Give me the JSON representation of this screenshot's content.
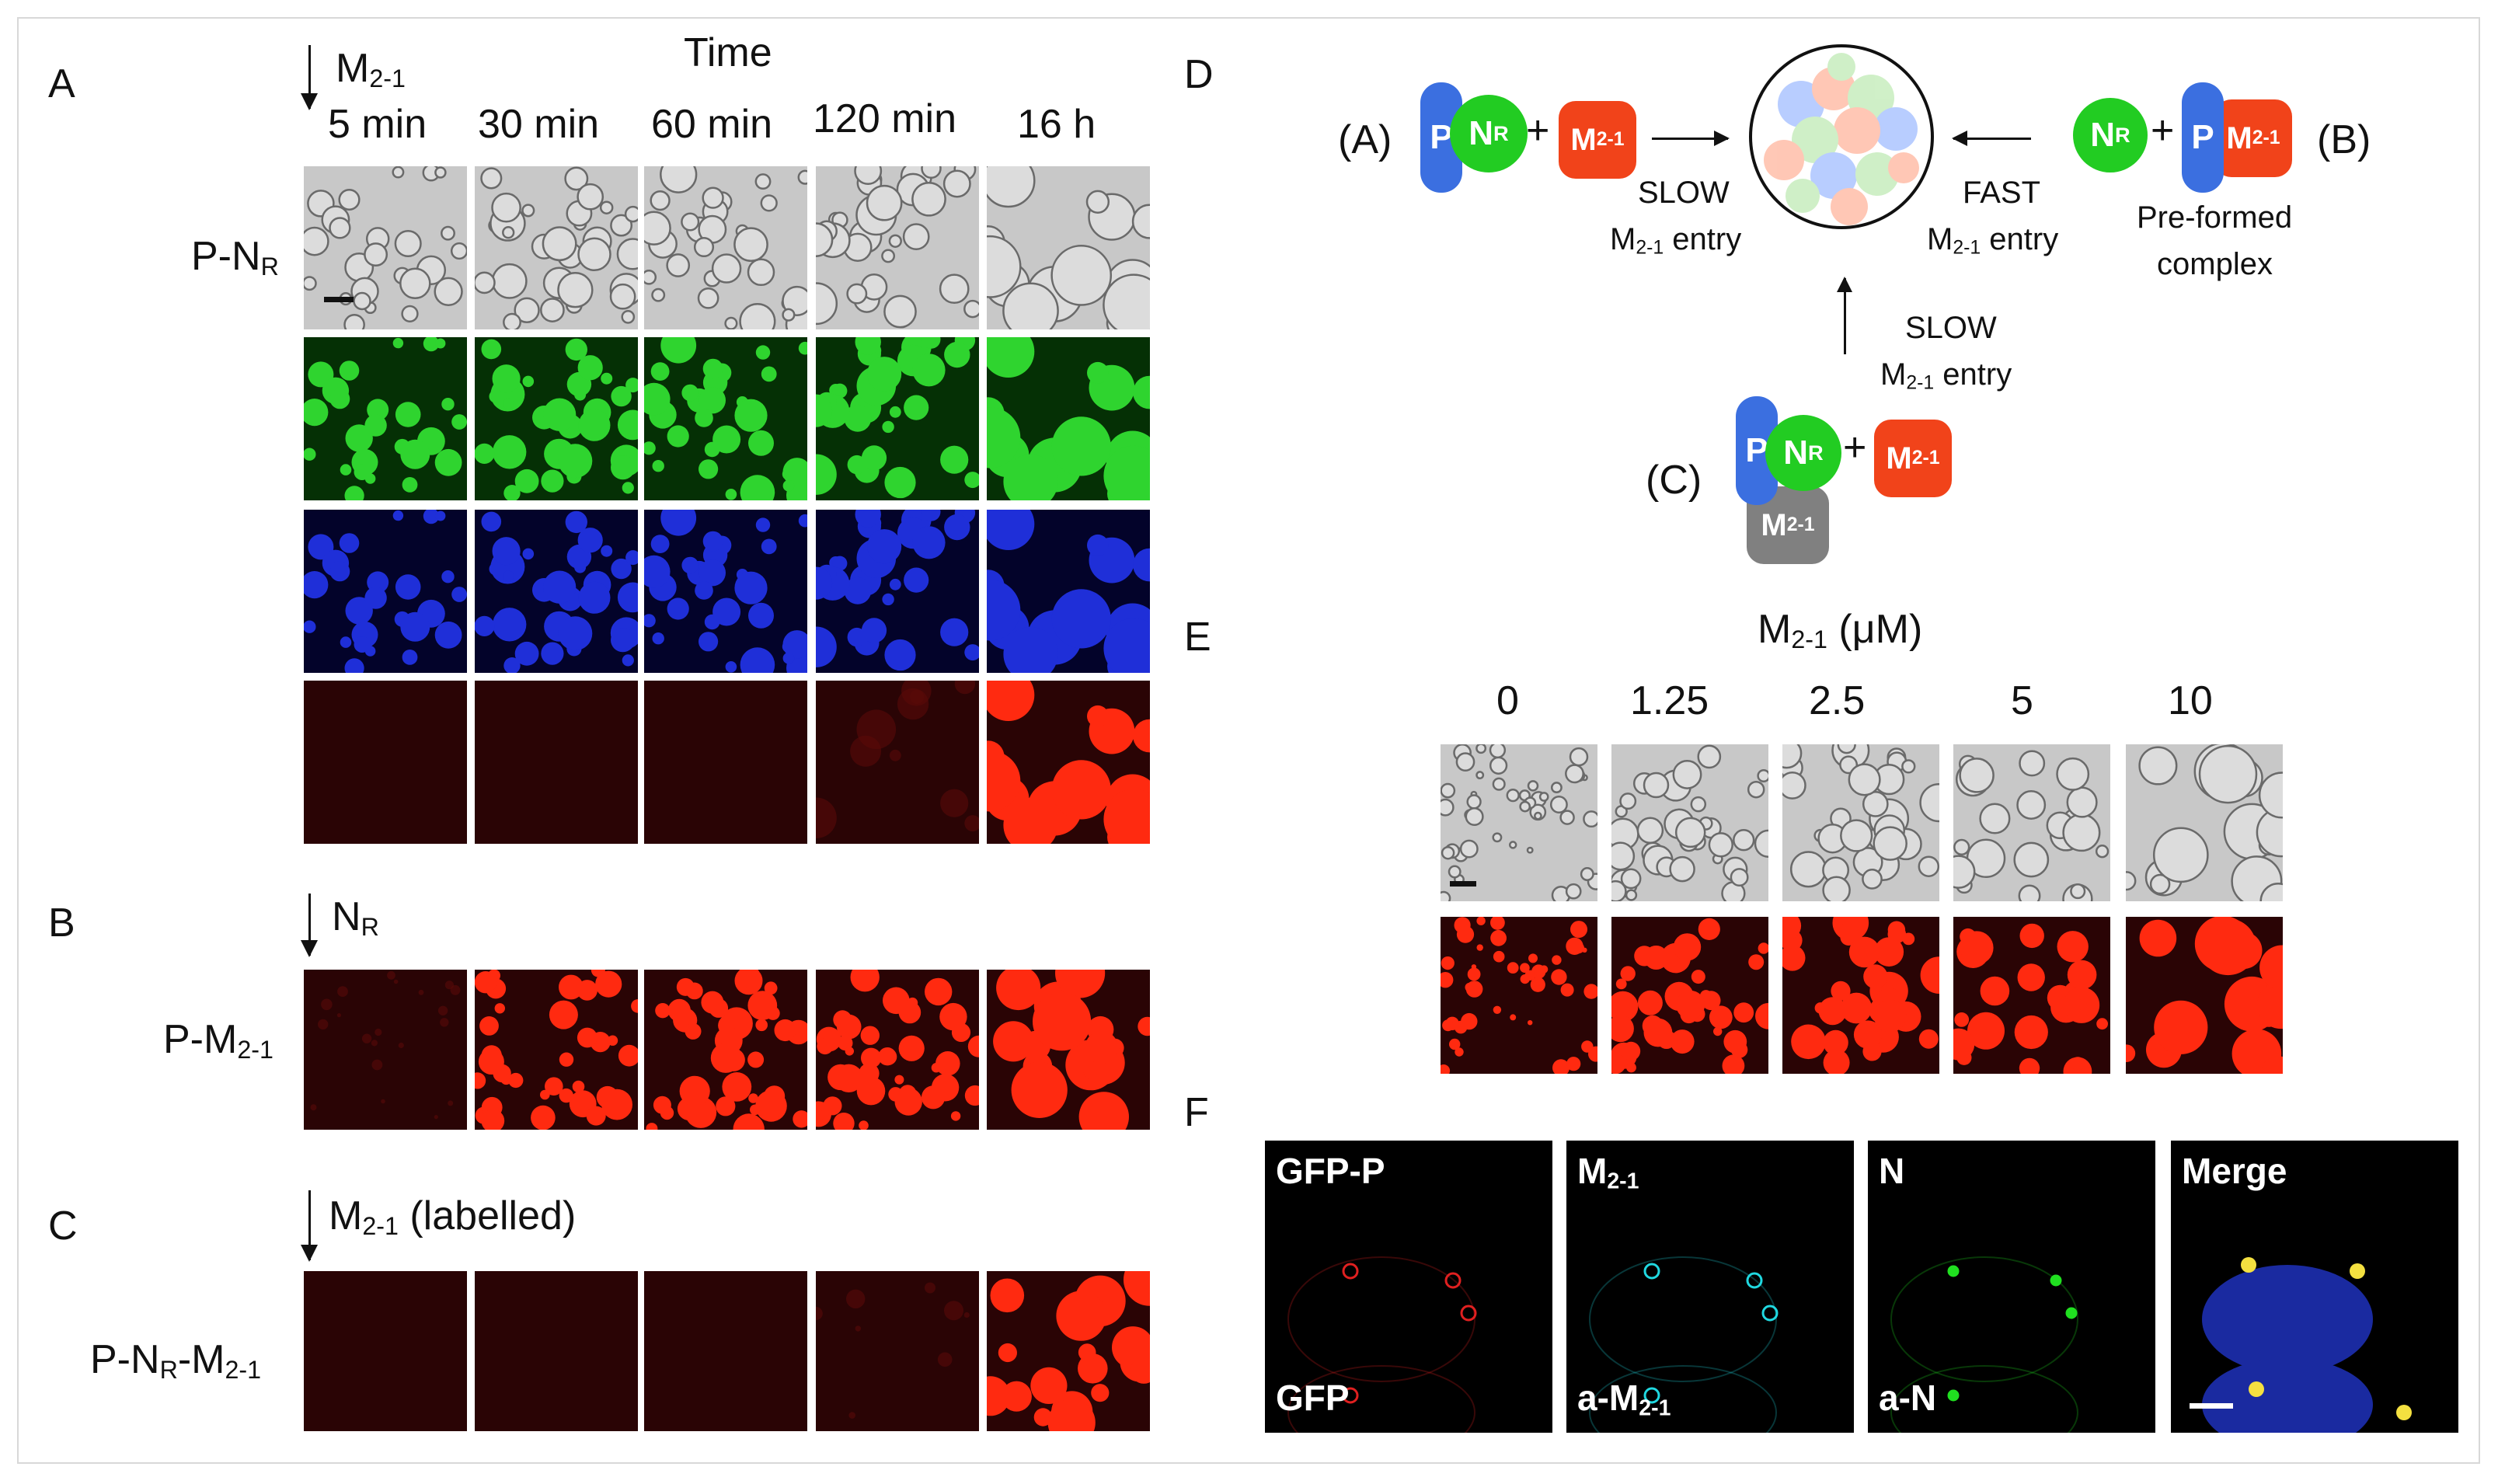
{
  "panels": {
    "A": "A",
    "B": "B",
    "C": "C",
    "D": "D",
    "E": "E",
    "F": "F"
  },
  "panelA": {
    "time_title": "Time",
    "added": "M",
    "added_sub": "2-1",
    "columns": [
      "5 min",
      "30 min",
      "60 min",
      "120 min",
      "16 h"
    ],
    "row_label": "P-N",
    "row_label_sub": "R"
  },
  "panelB": {
    "added": "N",
    "added_sub": "R",
    "row_label": "P-M",
    "row_label_sub": "2-1"
  },
  "panelC": {
    "added": "M",
    "added_sub": "2-1",
    "added_suffix": " (labelled)",
    "row_label_a": "P-N",
    "row_label_a_sub": "R",
    "row_label_b": "-M",
    "row_label_b_sub": "2-1"
  },
  "panelD": {
    "labels": {
      "A": "(A)",
      "B": "(B)",
      "C": "(C)"
    },
    "P": "P",
    "N": "N",
    "N_sub": "R",
    "M": "M",
    "M_sub": "2-1",
    "plus": "+",
    "slow": "SLOW",
    "fast": "FAST",
    "entry_prefix": "M",
    "entry_sub": "2-1",
    "entry_suffix": " entry",
    "preformed_1": "Pre-formed",
    "preformed_2": "complex"
  },
  "panelE": {
    "title_prefix": "M",
    "title_sub": "2-1",
    "title_unit": " (μM)",
    "concentrations": [
      "0",
      "1.25",
      "2.5",
      "5",
      "10"
    ]
  },
  "panelF": {
    "tiles": [
      {
        "top": "GFP-P",
        "bottom": "GFP",
        "color": "#e02020"
      },
      {
        "top": "M",
        "top_sub": "2-1",
        "bottom": "a-M",
        "bottom_sub": "2-1",
        "color": "#20d8e0"
      },
      {
        "top": "N",
        "bottom": "a-N",
        "color": "#20e020"
      },
      {
        "top": "Merge",
        "bottom": "",
        "color": "#ffffff"
      }
    ]
  },
  "colors": {
    "P": "#3b6fe0",
    "N": "#22cc22",
    "M2-1": "#f1431a",
    "M2-1_bound": "#808080"
  }
}
